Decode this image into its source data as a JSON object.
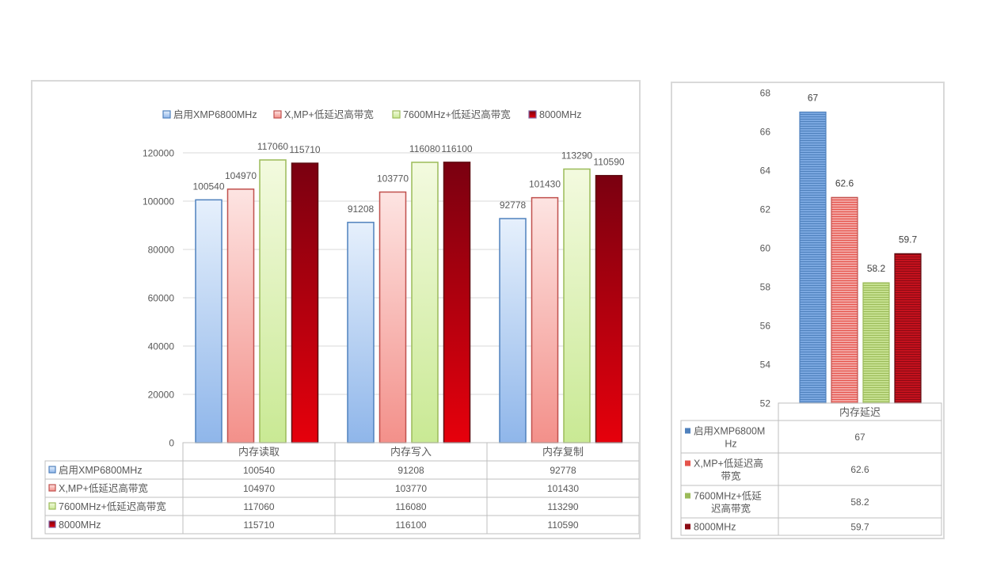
{
  "chart_data": [
    {
      "type": "bar",
      "categories": [
        "内存读取",
        "内存写入",
        "内存复制"
      ],
      "series": [
        {
          "name": "启用XMP6800MHz",
          "values": [
            100540,
            91208,
            92778
          ]
        },
        {
          "name": "X,MP+低延迟高带宽",
          "values": [
            104970,
            103770,
            101430
          ]
        },
        {
          "name": "7600MHz+低延迟高带宽",
          "values": [
            117060,
            116080,
            113290
          ]
        },
        {
          "name": "8000MHz",
          "values": [
            115710,
            116100,
            110590
          ]
        }
      ],
      "ylim": [
        0,
        120000
      ],
      "yticks": [
        "0",
        "20000",
        "40000",
        "60000",
        "80000",
        "100000",
        "120000"
      ],
      "data_labels": [
        [
          "100540",
          "91208",
          "92778"
        ],
        [
          "104970",
          "103770",
          "101430"
        ],
        [
          "117060",
          "116080",
          "113290"
        ],
        [
          "115710",
          "116100",
          "110590"
        ]
      ],
      "table": [
        [
          "100540",
          "91208",
          "92778"
        ],
        [
          "104970",
          "103770",
          "101430"
        ],
        [
          "117060",
          "116080",
          "113290"
        ],
        [
          "115710",
          "116100",
          "110590"
        ]
      ],
      "legend_position": "top",
      "grid": true
    },
    {
      "type": "bar",
      "categories": [
        "内存延迟"
      ],
      "series": [
        {
          "name": "启用XMP6800MHz",
          "label_lines": [
            "启用XMP6800M",
            "Hz"
          ],
          "values": [
            67
          ]
        },
        {
          "name": "X,MP+低延迟高带宽",
          "label_lines": [
            "X,MP+低延迟高",
            "带宽"
          ],
          "values": [
            62.6
          ]
        },
        {
          "name": "7600MHz+低延迟高带宽",
          "label_lines": [
            "7600MHz+低延",
            "迟高带宽"
          ],
          "values": [
            58.2
          ]
        },
        {
          "name": "8000MHz",
          "label_lines": [
            "8000MHz"
          ],
          "values": [
            59.7
          ]
        }
      ],
      "ylim": [
        52,
        68
      ],
      "yticks": [
        "52",
        "54",
        "56",
        "58",
        "60",
        "62",
        "64",
        "66",
        "68"
      ],
      "data_labels": [
        "67",
        "62.6",
        "58.2",
        "59.7"
      ],
      "table": [
        "67",
        "62.6",
        "58.2",
        "59.7"
      ],
      "grid": false
    }
  ],
  "colors": {
    "series1": "#5b8fd6",
    "series2": "#d9534f",
    "series3": "#8fc14a",
    "series4": "#7a0a14"
  }
}
